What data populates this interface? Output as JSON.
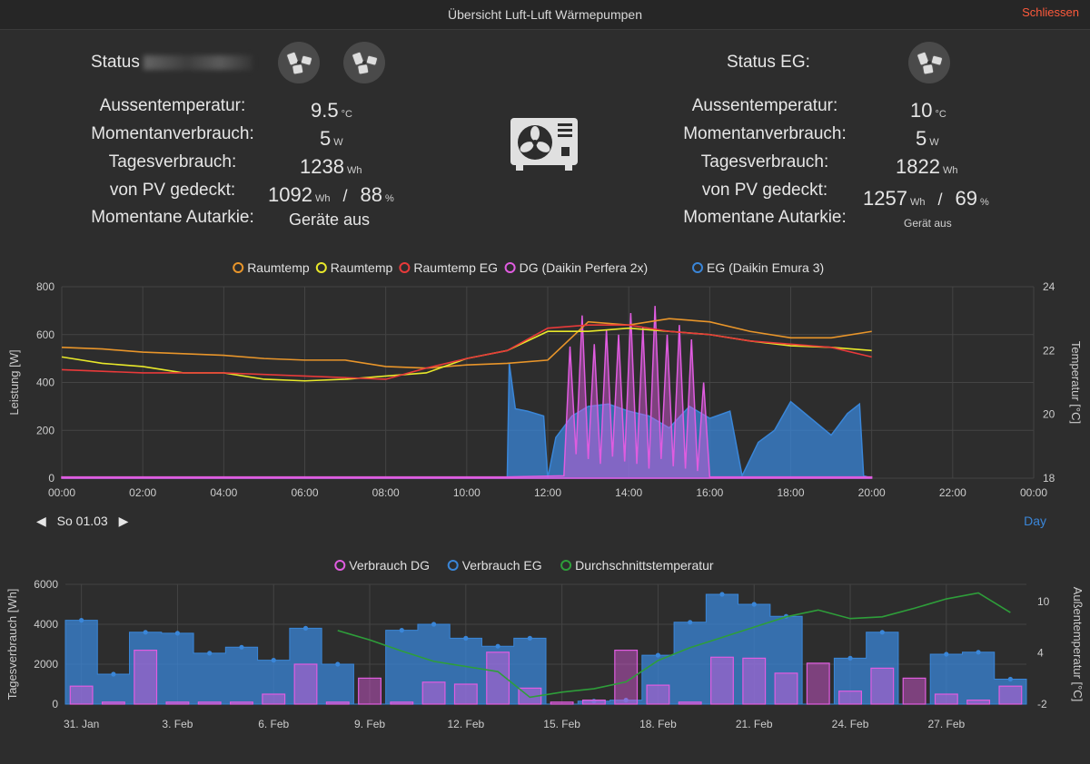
{
  "window": {
    "title": "Übersicht Luft-Luft Wärmepumpen",
    "close_label": "Schliessen"
  },
  "left": {
    "title": "Status",
    "rows": [
      {
        "label": "Aussentemperatur:",
        "value": "9.5",
        "unit": "°C"
      },
      {
        "label": "Momentanverbrauch:",
        "value": "5",
        "unit": "W"
      },
      {
        "label": "Tagesverbrauch:",
        "value": "1238",
        "unit": "Wh"
      },
      {
        "label": "von PV gedeckt:",
        "value": "1092",
        "unit": "Wh",
        "value2": "88",
        "unit2": "%"
      },
      {
        "label": "Momentane Autarkie:",
        "value": "Geräte aus"
      }
    ]
  },
  "right": {
    "title": "Status EG:",
    "rows": [
      {
        "label": "Aussentemperatur:",
        "value": "10",
        "unit": "°C"
      },
      {
        "label": "Momentanverbrauch:",
        "value": "5",
        "unit": "W"
      },
      {
        "label": "Tagesverbrauch:",
        "value": "1822",
        "unit": "Wh"
      },
      {
        "label": "von PV gedeckt:",
        "value": "1257",
        "unit": "Wh",
        "value2": "69",
        "unit2": "%"
      },
      {
        "label": "Momentane Autarkie:",
        "value": "Gerät aus"
      }
    ]
  },
  "separator": "/",
  "nav": {
    "prev": "◀",
    "date": "So 01.03",
    "next": "▶",
    "period": "Day"
  },
  "chart_data": [
    {
      "type": "line",
      "legend": [
        "Raumtemp",
        "Raumtemp",
        "Raumtemp EG",
        "DG (Daikin Perfera 2x)",
        "EG (Daikin Emura 3)"
      ],
      "colors": [
        "#e8952a",
        "#e8e82a",
        "#e83a3a",
        "#e05ce0",
        "#3a86d8"
      ],
      "ylabel": "Leistung [W]",
      "y2label": "Temperatur [°C]",
      "ylim": [
        0,
        800
      ],
      "y2lim": [
        18,
        24
      ],
      "yticks": [
        0,
        200,
        400,
        600,
        800
      ],
      "y2ticks": [
        18,
        20,
        22,
        24
      ],
      "xticks": [
        "00:00",
        "02:00",
        "04:00",
        "06:00",
        "08:00",
        "10:00",
        "12:00",
        "14:00",
        "16:00",
        "18:00",
        "20:00",
        "22:00",
        "00:00"
      ],
      "series": [
        {
          "axis": "y2",
          "x": [
            0,
            1,
            2,
            3,
            4,
            5,
            6,
            7,
            8,
            9,
            10,
            11,
            12,
            13,
            14,
            15,
            16,
            17,
            18,
            19,
            20
          ],
          "y": [
            22.1,
            22.05,
            21.95,
            21.9,
            21.85,
            21.75,
            21.7,
            21.7,
            21.5,
            21.45,
            21.55,
            21.6,
            21.7,
            22.9,
            22.8,
            23.0,
            22.9,
            22.6,
            22.4,
            22.4,
            22.6
          ]
        },
        {
          "axis": "y2",
          "x": [
            0,
            1,
            2,
            3,
            4,
            5,
            6,
            7,
            8,
            9,
            10,
            11,
            12,
            13,
            14,
            15,
            16,
            17,
            18,
            19,
            20
          ],
          "y": [
            21.8,
            21.6,
            21.5,
            21.3,
            21.3,
            21.1,
            21.05,
            21.1,
            21.2,
            21.3,
            21.75,
            22.0,
            22.6,
            22.6,
            22.7,
            22.6,
            22.5,
            22.3,
            22.15,
            22.1,
            22.0
          ]
        },
        {
          "axis": "y2",
          "x": [
            0,
            1,
            2,
            3,
            4,
            5,
            6,
            7,
            8,
            9,
            10,
            11,
            12,
            13,
            14,
            15,
            16,
            17,
            18,
            19,
            20
          ],
          "y": [
            21.4,
            21.35,
            21.3,
            21.3,
            21.3,
            21.25,
            21.2,
            21.15,
            21.1,
            21.45,
            21.75,
            22.0,
            22.7,
            22.8,
            22.8,
            22.6,
            22.5,
            22.3,
            22.2,
            22.1,
            21.8
          ]
        },
        {
          "axis": "y",
          "x": [
            0,
            4,
            8,
            11,
            12.4,
            12.55,
            12.7,
            12.85,
            13.0,
            13.15,
            13.3,
            13.45,
            13.6,
            13.75,
            13.9,
            14.05,
            14.2,
            14.35,
            14.5,
            14.65,
            14.8,
            14.95,
            15.1,
            15.25,
            15.4,
            15.55,
            15.7,
            15.85,
            16.0,
            17,
            18,
            19,
            20
          ],
          "y": [
            5,
            5,
            5,
            5,
            10,
            550,
            100,
            680,
            80,
            560,
            60,
            620,
            90,
            600,
            70,
            690,
            60,
            630,
            40,
            720,
            80,
            600,
            50,
            640,
            40,
            580,
            30,
            400,
            5,
            5,
            5,
            5,
            5
          ]
        },
        {
          "axis": "y",
          "x": [
            0,
            11,
            11.05,
            11.2,
            11.5,
            11.9,
            12.0,
            12.2,
            12.6,
            13.0,
            13.5,
            14.0,
            14.5,
            15.0,
            15.5,
            16.0,
            16.5,
            16.8,
            17.2,
            17.6,
            18.0,
            18.5,
            19.0,
            19.4,
            19.7,
            19.8,
            20.0
          ],
          "y": [
            0,
            0,
            480,
            290,
            280,
            260,
            0,
            170,
            260,
            300,
            310,
            280,
            260,
            210,
            300,
            250,
            280,
            10,
            150,
            200,
            320,
            250,
            180,
            270,
            310,
            10,
            0
          ]
        }
      ]
    },
    {
      "type": "bar",
      "legend": [
        "Verbrauch DG",
        "Verbrauch EG",
        "Durchschnittstemperatur"
      ],
      "colors": [
        "#e05ce0",
        "#3a86d8",
        "#2e9e3a"
      ],
      "ylabel": "Tagesverbrauch [Wh]",
      "y2label": "Außentemperatur [°C]",
      "ylim": [
        0,
        6000
      ],
      "y2lim": [
        -2,
        12
      ],
      "yticks": [
        0,
        2000,
        4000,
        6000
      ],
      "y2ticks": [
        -2,
        4,
        10
      ],
      "xticks": [
        "31. Jan",
        "3. Feb",
        "6. Feb",
        "9. Feb",
        "12. Feb",
        "15. Feb",
        "18. Feb",
        "21. Feb",
        "24. Feb",
        "27. Feb"
      ],
      "days": 30,
      "dg": [
        900,
        100,
        2700,
        100,
        100,
        100,
        500,
        2000,
        100,
        1300,
        100,
        1100,
        1000,
        2600,
        800,
        100,
        200,
        2700,
        950,
        100,
        2350,
        2300,
        1550,
        2050,
        650,
        1800,
        1300,
        500,
        200,
        900
      ],
      "eg": [
        4200,
        1500,
        3600,
        3550,
        2550,
        2850,
        2200,
        3800,
        2000,
        0,
        3700,
        4000,
        3300,
        2900,
        3300,
        0,
        150,
        200,
        2450,
        4100,
        5500,
        5000,
        4400,
        0,
        2300,
        3600,
        0,
        2500,
        2600,
        1250
      ],
      "temp": [
        null,
        null,
        null,
        null,
        null,
        null,
        null,
        null,
        6.6,
        5.5,
        4.2,
        3.0,
        2.4,
        1.8,
        -1.2,
        -0.6,
        -0.2,
        0.6,
        3.1,
        4.6,
        5.8,
        7.0,
        8.2,
        9.0,
        8.0,
        8.2,
        9.2,
        10.3,
        11.0,
        8.7
      ]
    }
  ]
}
